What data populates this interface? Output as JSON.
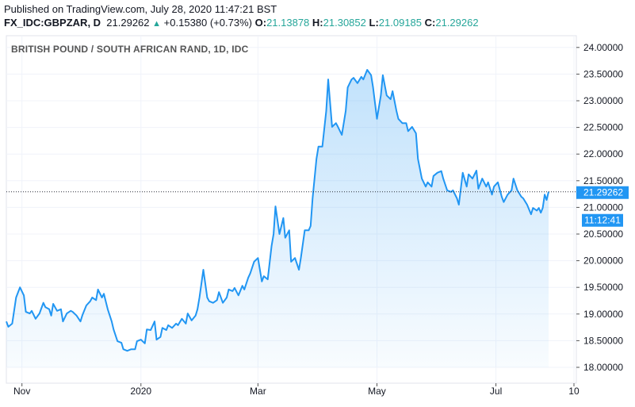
{
  "header": {
    "published": "Published on TradingView.com, July 28, 2020 11:47:21 BST",
    "symbol": "FX_IDC:GBPZAR, D",
    "last": "21.29262",
    "arrow": "▲",
    "change": "+0.15380 (+0.73%)",
    "o_label": "O:",
    "o": "21.13878",
    "h_label": "H:",
    "h": "21.30852",
    "l_label": "L:",
    "l": "21.09185",
    "c_label": "C:",
    "c": "21.29262"
  },
  "colors": {
    "line": "#2196f3",
    "fill": "#2196f3",
    "up": "#26a69a",
    "grid": "#f0f3fa"
  },
  "chart_data": {
    "type": "area",
    "title": "BRITISH POUND / SOUTH AFRICAN RAND, 1D, IDC",
    "ylim": [
      17.8,
      24.3
    ],
    "y_ticks": [
      "18.00000",
      "18.50000",
      "19.00000",
      "19.50000",
      "20.00000",
      "20.50000",
      "21.00000",
      "21.50000",
      "22.00000",
      "22.50000",
      "23.00000",
      "23.50000",
      "24.00000"
    ],
    "x_ticks": [
      {
        "date": "2019-11-01",
        "label": "Nov"
      },
      {
        "date": "2020-01-01",
        "label": "2020"
      },
      {
        "date": "2020-03-01",
        "label": "Mar"
      },
      {
        "date": "2020-05-01",
        "label": "May"
      },
      {
        "date": "2020-07-01",
        "label": "Jul"
      },
      {
        "date": "2020-08-10",
        "label": "10"
      }
    ],
    "last_price_label": "21.29262",
    "countdown_label": "11:12:41",
    "grid": true,
    "points": [
      [
        "2019-10-24",
        18.86
      ],
      [
        "2019-10-25",
        18.76
      ],
      [
        "2019-10-27",
        18.82
      ],
      [
        "2019-10-29",
        19.31
      ],
      [
        "2019-10-31",
        19.5
      ],
      [
        "2019-11-02",
        19.35
      ],
      [
        "2019-11-03",
        19.04
      ],
      [
        "2019-11-05",
        19.01
      ],
      [
        "2019-11-06",
        19.06
      ],
      [
        "2019-11-08",
        18.91
      ],
      [
        "2019-11-10",
        19.01
      ],
      [
        "2019-11-12",
        19.21
      ],
      [
        "2019-11-13",
        19.13
      ],
      [
        "2019-11-15",
        19.09
      ],
      [
        "2019-11-16",
        18.97
      ],
      [
        "2019-11-17",
        19.19
      ],
      [
        "2019-11-19",
        19.06
      ],
      [
        "2019-11-21",
        19.09
      ],
      [
        "2019-11-22",
        18.86
      ],
      [
        "2019-11-24",
        19.01
      ],
      [
        "2019-11-26",
        19.06
      ],
      [
        "2019-11-27",
        19.04
      ],
      [
        "2019-11-29",
        18.97
      ],
      [
        "2019-12-01",
        18.86
      ],
      [
        "2019-12-02",
        18.98
      ],
      [
        "2019-12-04",
        19.16
      ],
      [
        "2019-12-06",
        19.24
      ],
      [
        "2019-12-07",
        19.31
      ],
      [
        "2019-12-09",
        19.26
      ],
      [
        "2019-12-10",
        19.46
      ],
      [
        "2019-12-12",
        19.31
      ],
      [
        "2019-12-13",
        19.38
      ],
      [
        "2019-12-15",
        19.09
      ],
      [
        "2019-12-17",
        18.86
      ],
      [
        "2019-12-18",
        18.71
      ],
      [
        "2019-12-20",
        18.49
      ],
      [
        "2019-12-22",
        18.46
      ],
      [
        "2019-12-23",
        18.34
      ],
      [
        "2019-12-25",
        18.31
      ],
      [
        "2019-12-27",
        18.34
      ],
      [
        "2019-12-29",
        18.34
      ],
      [
        "2019-12-30",
        18.49
      ],
      [
        "2020-01-01",
        18.52
      ],
      [
        "2020-01-03",
        18.45
      ],
      [
        "2020-01-04",
        18.71
      ],
      [
        "2020-01-06",
        18.7
      ],
      [
        "2020-01-08",
        18.86
      ],
      [
        "2020-01-09",
        18.52
      ],
      [
        "2020-01-11",
        18.57
      ],
      [
        "2020-01-12",
        18.74
      ],
      [
        "2020-01-14",
        18.7
      ],
      [
        "2020-01-15",
        18.79
      ],
      [
        "2020-01-17",
        18.74
      ],
      [
        "2020-01-19",
        18.82
      ],
      [
        "2020-01-20",
        18.79
      ],
      [
        "2020-01-22",
        18.91
      ],
      [
        "2020-01-24",
        18.82
      ],
      [
        "2020-01-25",
        19.01
      ],
      [
        "2020-01-27",
        18.88
      ],
      [
        "2020-01-29",
        18.97
      ],
      [
        "2020-01-30",
        19.09
      ],
      [
        "2020-01-31",
        19.31
      ],
      [
        "2020-02-02",
        19.83
      ],
      [
        "2020-02-04",
        19.31
      ],
      [
        "2020-02-05",
        19.24
      ],
      [
        "2020-02-07",
        19.21
      ],
      [
        "2020-02-09",
        19.26
      ],
      [
        "2020-02-10",
        19.41
      ],
      [
        "2020-02-12",
        19.21
      ],
      [
        "2020-02-14",
        19.31
      ],
      [
        "2020-02-15",
        19.46
      ],
      [
        "2020-02-17",
        19.43
      ],
      [
        "2020-02-18",
        19.49
      ],
      [
        "2020-02-20",
        19.35
      ],
      [
        "2020-02-22",
        19.53
      ],
      [
        "2020-02-23",
        19.46
      ],
      [
        "2020-02-25",
        19.68
      ],
      [
        "2020-02-26",
        19.76
      ],
      [
        "2020-02-28",
        19.98
      ],
      [
        "2020-03-01",
        20.05
      ],
      [
        "2020-03-03",
        19.61
      ],
      [
        "2020-03-04",
        19.71
      ],
      [
        "2020-03-06",
        19.65
      ],
      [
        "2020-03-08",
        20.28
      ],
      [
        "2020-03-09",
        20.5
      ],
      [
        "2020-03-10",
        21.02
      ],
      [
        "2020-03-12",
        20.5
      ],
      [
        "2020-03-14",
        20.8
      ],
      [
        "2020-03-15",
        20.43
      ],
      [
        "2020-03-17",
        20.57
      ],
      [
        "2020-03-18",
        19.98
      ],
      [
        "2020-03-20",
        20.05
      ],
      [
        "2020-03-22",
        19.83
      ],
      [
        "2020-03-23",
        20.05
      ],
      [
        "2020-03-25",
        20.57
      ],
      [
        "2020-03-27",
        20.57
      ],
      [
        "2020-03-28",
        20.65
      ],
      [
        "2020-03-29",
        21.17
      ],
      [
        "2020-03-31",
        21.91
      ],
      [
        "2020-04-01",
        22.14
      ],
      [
        "2020-04-03",
        22.14
      ],
      [
        "2020-04-05",
        22.81
      ],
      [
        "2020-04-06",
        23.4
      ],
      [
        "2020-04-08",
        22.51
      ],
      [
        "2020-04-10",
        22.58
      ],
      [
        "2020-04-11",
        22.51
      ],
      [
        "2020-04-13",
        22.36
      ],
      [
        "2020-04-15",
        22.81
      ],
      [
        "2020-04-16",
        23.25
      ],
      [
        "2020-04-18",
        23.4
      ],
      [
        "2020-04-19",
        23.43
      ],
      [
        "2020-04-21",
        23.33
      ],
      [
        "2020-04-23",
        23.45
      ],
      [
        "2020-04-24",
        23.4
      ],
      [
        "2020-04-26",
        23.58
      ],
      [
        "2020-04-28",
        23.48
      ],
      [
        "2020-04-29",
        23.25
      ],
      [
        "2020-05-01",
        22.66
      ],
      [
        "2020-05-03",
        23.1
      ],
      [
        "2020-05-04",
        23.48
      ],
      [
        "2020-05-06",
        23.1
      ],
      [
        "2020-05-08",
        23.03
      ],
      [
        "2020-05-09",
        23.18
      ],
      [
        "2020-05-11",
        22.81
      ],
      [
        "2020-05-12",
        22.66
      ],
      [
        "2020-05-14",
        22.58
      ],
      [
        "2020-05-16",
        22.58
      ],
      [
        "2020-05-17",
        22.43
      ],
      [
        "2020-05-19",
        22.51
      ],
      [
        "2020-05-21",
        22.39
      ],
      [
        "2020-05-22",
        21.91
      ],
      [
        "2020-05-24",
        21.54
      ],
      [
        "2020-05-26",
        21.39
      ],
      [
        "2020-05-27",
        21.47
      ],
      [
        "2020-05-29",
        21.39
      ],
      [
        "2020-05-30",
        21.59
      ],
      [
        "2020-06-01",
        21.65
      ],
      [
        "2020-06-03",
        21.68
      ],
      [
        "2020-06-04",
        21.54
      ],
      [
        "2020-06-06",
        21.32
      ],
      [
        "2020-06-08",
        21.29
      ],
      [
        "2020-06-09",
        21.32
      ],
      [
        "2020-06-11",
        21.17
      ],
      [
        "2020-06-12",
        21.05
      ],
      [
        "2020-06-14",
        21.65
      ],
      [
        "2020-06-16",
        21.39
      ],
      [
        "2020-06-17",
        21.62
      ],
      [
        "2020-06-19",
        21.54
      ],
      [
        "2020-06-21",
        21.69
      ],
      [
        "2020-06-22",
        21.35
      ],
      [
        "2020-06-24",
        21.54
      ],
      [
        "2020-06-26",
        21.39
      ],
      [
        "2020-06-27",
        21.47
      ],
      [
        "2020-06-29",
        21.24
      ],
      [
        "2020-06-30",
        21.39
      ],
      [
        "2020-07-02",
        21.47
      ],
      [
        "2020-07-04",
        21.2
      ],
      [
        "2020-07-05",
        21.1
      ],
      [
        "2020-07-07",
        21.24
      ],
      [
        "2020-07-09",
        21.32
      ],
      [
        "2020-07-10",
        21.54
      ],
      [
        "2020-07-12",
        21.32
      ],
      [
        "2020-07-14",
        21.2
      ],
      [
        "2020-07-15",
        21.17
      ],
      [
        "2020-07-17",
        21.05
      ],
      [
        "2020-07-19",
        20.87
      ],
      [
        "2020-07-20",
        20.99
      ],
      [
        "2020-07-22",
        20.94
      ],
      [
        "2020-07-23",
        20.99
      ],
      [
        "2020-07-24",
        20.9
      ],
      [
        "2020-07-25",
        20.99
      ],
      [
        "2020-07-26",
        21.24
      ],
      [
        "2020-07-27",
        21.14
      ],
      [
        "2020-07-28",
        21.29262
      ]
    ]
  }
}
